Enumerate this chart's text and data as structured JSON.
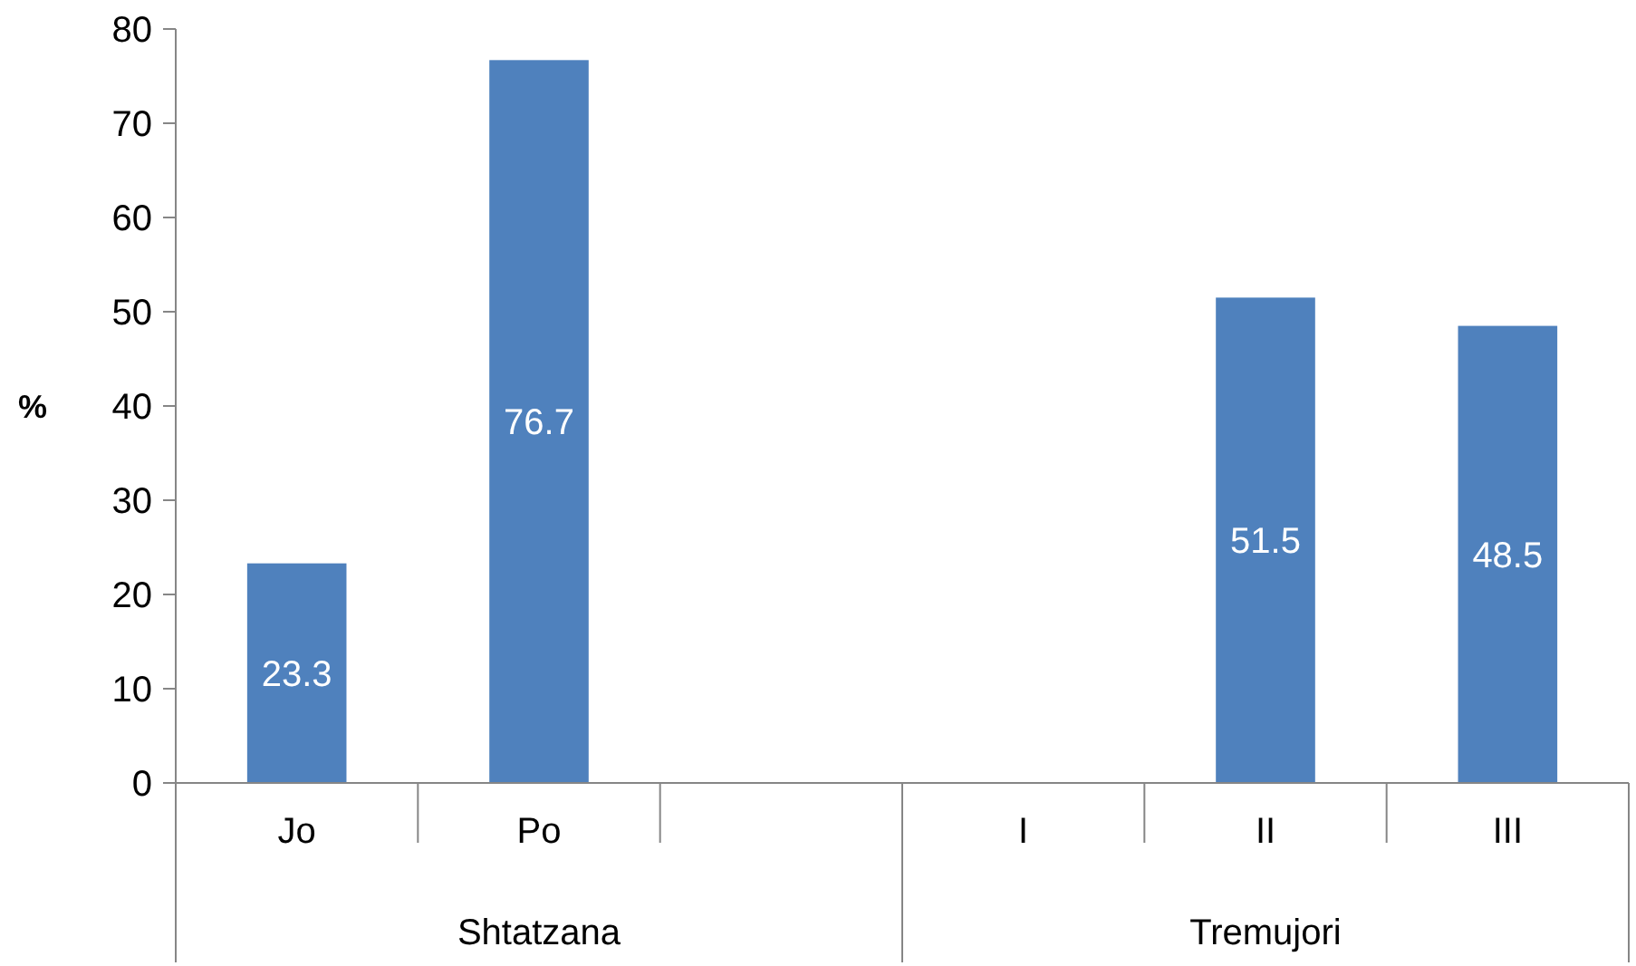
{
  "chart_data": {
    "type": "bar",
    "ylabel": "%",
    "categories": [
      "Jo",
      "Po",
      null,
      "I",
      "II",
      "III"
    ],
    "values": [
      23.3,
      76.7,
      null,
      null,
      51.5,
      48.5
    ],
    "color": "#4f81bd",
    "ylim": [
      0,
      80
    ],
    "yticks": [
      0,
      10,
      20,
      30,
      40,
      50,
      60,
      70,
      80
    ],
    "data_labels": true,
    "grid": false,
    "annotations": [
      "Shtatzana",
      "Tremujori"
    ]
  }
}
